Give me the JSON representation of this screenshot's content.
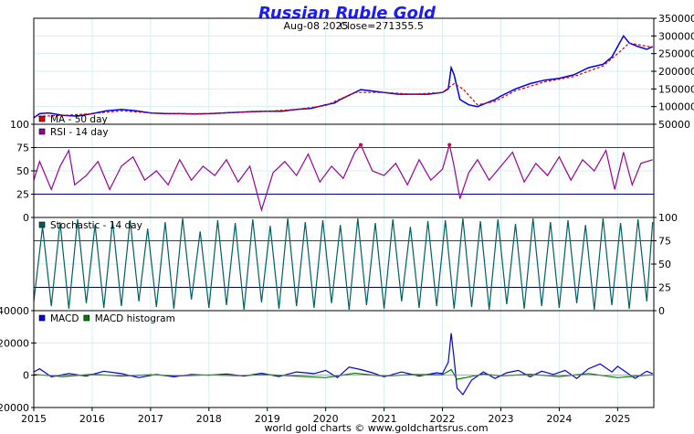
{
  "chart_data": [
    {
      "type": "line",
      "title": "Russian Ruble Gold",
      "subtitle_date": "Aug-08  2025",
      "subtitle_close": "Close=271355.5",
      "ylim": [
        50000,
        350000
      ],
      "yticks": [
        "350000",
        "300000",
        "250000",
        "200000",
        "150000",
        "100000",
        "50000"
      ],
      "ytick_values": [
        350000,
        300000,
        250000,
        200000,
        150000,
        100000,
        50000
      ],
      "grid": true,
      "series": [
        {
          "name": "",
          "color": "#0000ee",
          "x": [
            2015.0,
            2015.1,
            2015.25,
            2015.5,
            2015.75,
            2016.0,
            2016.25,
            2016.5,
            2016.75,
            2017.0,
            2017.25,
            2017.5,
            2017.75,
            2018.0,
            2018.25,
            2018.5,
            2018.75,
            2019.0,
            2019.25,
            2019.5,
            2019.75,
            2020.0,
            2020.15,
            2020.25,
            2020.4,
            2020.6,
            2020.75,
            2021.0,
            2021.25,
            2021.5,
            2021.75,
            2022.0,
            2022.1,
            2022.15,
            2022.2,
            2022.3,
            2022.45,
            2022.6,
            2022.75,
            2022.9,
            2023.0,
            2023.25,
            2023.5,
            2023.75,
            2024.0,
            2024.25,
            2024.5,
            2024.75,
            2024.9,
            2025.0,
            2025.1,
            2025.2,
            2025.35,
            2025.5,
            2025.6
          ],
          "y": [
            68000,
            80000,
            82000,
            75000,
            73000,
            80000,
            88000,
            92000,
            88000,
            82000,
            80000,
            80000,
            79000,
            80000,
            82000,
            84000,
            86000,
            87000,
            87000,
            92000,
            95000,
            105000,
            110000,
            120000,
            132000,
            148000,
            145000,
            140000,
            135000,
            135000,
            135000,
            140000,
            150000,
            210000,
            190000,
            120000,
            105000,
            100000,
            110000,
            120000,
            130000,
            150000,
            165000,
            175000,
            180000,
            190000,
            210000,
            220000,
            240000,
            270000,
            300000,
            280000,
            270000,
            262000,
            270000
          ]
        },
        {
          "name": "MA - 50 day",
          "color": "#e00000",
          "x": [
            2015.0,
            2015.5,
            2016.0,
            2016.5,
            2017.0,
            2017.5,
            2018.0,
            2018.5,
            2019.0,
            2019.5,
            2020.0,
            2020.5,
            2021.0,
            2021.5,
            2022.0,
            2022.2,
            2022.35,
            2022.6,
            2022.9,
            2023.25,
            2023.75,
            2024.25,
            2024.75,
            2025.0,
            2025.2,
            2025.6
          ],
          "y": [
            72000,
            75000,
            80000,
            88000,
            82000,
            80000,
            80000,
            84000,
            87000,
            92000,
            103000,
            140000,
            140000,
            135000,
            140000,
            165000,
            150000,
            105000,
            115000,
            145000,
            170000,
            185000,
            215000,
            250000,
            280000,
            268000
          ]
        }
      ]
    },
    {
      "type": "line",
      "legend": [
        "RSI - 14 day"
      ],
      "ylim": [
        0,
        100
      ],
      "yticks": [
        "100",
        "75",
        "50",
        "25",
        "0"
      ],
      "ytick_values": [
        100,
        75,
        50,
        25,
        0
      ],
      "reference_lines": [
        75,
        25
      ],
      "series": [
        {
          "name": "RSI - 14 day",
          "color": "#990099",
          "overbought_color": "#e00040",
          "x": [
            2015.0,
            2015.1,
            2015.3,
            2015.45,
            2015.6,
            2015.7,
            2015.9,
            2016.1,
            2016.3,
            2016.5,
            2016.7,
            2016.9,
            2017.1,
            2017.3,
            2017.5,
            2017.7,
            2017.9,
            2018.1,
            2018.3,
            2018.5,
            2018.7,
            2018.9,
            2019.1,
            2019.3,
            2019.5,
            2019.7,
            2019.9,
            2020.1,
            2020.3,
            2020.5,
            2020.6,
            2020.8,
            2021.0,
            2021.2,
            2021.4,
            2021.6,
            2021.8,
            2022.0,
            2022.12,
            2022.2,
            2022.3,
            2022.45,
            2022.6,
            2022.8,
            2023.0,
            2023.2,
            2023.4,
            2023.6,
            2023.8,
            2024.0,
            2024.2,
            2024.4,
            2024.6,
            2024.8,
            2024.95,
            2025.1,
            2025.25,
            2025.4,
            2025.6
          ],
          "y": [
            40,
            60,
            30,
            55,
            72,
            35,
            45,
            60,
            30,
            55,
            65,
            40,
            50,
            35,
            62,
            40,
            55,
            45,
            62,
            38,
            55,
            8,
            48,
            60,
            45,
            68,
            38,
            55,
            42,
            70,
            78,
            50,
            45,
            58,
            35,
            62,
            40,
            52,
            78,
            55,
            20,
            48,
            62,
            40,
            55,
            70,
            38,
            58,
            45,
            65,
            40,
            62,
            50,
            72,
            30,
            70,
            35,
            58,
            62
          ]
        }
      ]
    },
    {
      "type": "line",
      "legend": [
        "Stochastic - 14 day"
      ],
      "ylim": [
        0,
        100
      ],
      "yticks": [
        "100",
        "75",
        "50",
        "25",
        "0"
      ],
      "ytick_values": [
        100,
        75,
        50,
        25,
        0
      ],
      "reference_lines": [
        75,
        25
      ],
      "series": [
        {
          "name": "Stochastic - 14 day",
          "color": "#006060",
          "x": [
            2015.0,
            2015.15,
            2015.3,
            2015.45,
            2015.6,
            2015.75,
            2015.9,
            2016.05,
            2016.2,
            2016.35,
            2016.5,
            2016.65,
            2016.8,
            2016.95,
            2017.1,
            2017.25,
            2017.4,
            2017.55,
            2017.7,
            2017.85,
            2018.0,
            2018.15,
            2018.3,
            2018.45,
            2018.6,
            2018.75,
            2018.9,
            2019.05,
            2019.2,
            2019.35,
            2019.5,
            2019.65,
            2019.8,
            2019.95,
            2020.1,
            2020.25,
            2020.4,
            2020.55,
            2020.7,
            2020.85,
            2021.0,
            2021.15,
            2021.3,
            2021.45,
            2021.6,
            2021.75,
            2021.9,
            2022.05,
            2022.2,
            2022.35,
            2022.5,
            2022.65,
            2022.8,
            2022.95,
            2023.1,
            2023.25,
            2023.4,
            2023.55,
            2023.7,
            2023.85,
            2024.0,
            2024.15,
            2024.3,
            2024.45,
            2024.6,
            2024.75,
            2024.9,
            2025.05,
            2025.2,
            2025.35,
            2025.5,
            2025.6
          ],
          "y": [
            10,
            90,
            5,
            95,
            2,
            98,
            8,
            92,
            3,
            96,
            5,
            97,
            10,
            88,
            4,
            95,
            2,
            99,
            12,
            85,
            3,
            97,
            6,
            94,
            1,
            98,
            9,
            91,
            2,
            99,
            5,
            95,
            3,
            97,
            8,
            92,
            1,
            99,
            6,
            94,
            2,
            98,
            10,
            90,
            3,
            96,
            5,
            97,
            2,
            99,
            4,
            96,
            1,
            98,
            7,
            93,
            2,
            99,
            5,
            95,
            3,
            97,
            8,
            92,
            1,
            99,
            6,
            94,
            2,
            98,
            10,
            95
          ]
        }
      ]
    },
    {
      "type": "line",
      "legend": [
        "MACD",
        "MACD histogram"
      ],
      "ylim": [
        -20000,
        40000
      ],
      "yticks": [
        "40000",
        "20000",
        "0",
        "-20000"
      ],
      "ytick_values": [
        40000,
        20000,
        0,
        -20000
      ],
      "categories": [
        "2015",
        "2016",
        "2017",
        "2018",
        "2019",
        "2020",
        "2021",
        "2022",
        "2023",
        "2024",
        "2025"
      ],
      "category_values": [
        2015,
        2016,
        2017,
        2018,
        2019,
        2020,
        2021,
        2022,
        2023,
        2024,
        2025
      ],
      "xlim": [
        2015.0,
        2025.62
      ],
      "series": [
        {
          "name": "MACD",
          "color": "#0000ee",
          "x": [
            2015.0,
            2015.1,
            2015.3,
            2015.6,
            2015.9,
            2016.2,
            2016.5,
            2016.8,
            2017.1,
            2017.4,
            2017.7,
            2018.0,
            2018.3,
            2018.6,
            2018.9,
            2019.2,
            2019.5,
            2019.8,
            2020.0,
            2020.2,
            2020.4,
            2020.6,
            2020.8,
            2021.0,
            2021.3,
            2021.6,
            2021.9,
            2022.0,
            2022.1,
            2022.15,
            2022.2,
            2022.25,
            2022.35,
            2022.5,
            2022.7,
            2022.9,
            2023.1,
            2023.3,
            2023.5,
            2023.7,
            2023.9,
            2024.1,
            2024.3,
            2024.5,
            2024.7,
            2024.9,
            2025.0,
            2025.1,
            2025.3,
            2025.5,
            2025.6
          ],
          "y": [
            2000,
            4000,
            -1000,
            1000,
            -500,
            2500,
            1000,
            -1500,
            500,
            -1000,
            500,
            0,
            800,
            -500,
            1200,
            -800,
            2000,
            1000,
            3000,
            -1500,
            5000,
            3500,
            1500,
            -1000,
            2000,
            -500,
            1500,
            1000,
            8000,
            26000,
            10000,
            -8000,
            -12000,
            -3000,
            2000,
            -2000,
            1500,
            3000,
            -1000,
            2500,
            500,
            3000,
            -2000,
            4000,
            7000,
            2000,
            5500,
            3000,
            -2000,
            2500,
            1000
          ]
        },
        {
          "name": "MACD histogram",
          "color": "#008000",
          "x": [
            2015.0,
            2015.5,
            2016.0,
            2016.5,
            2017.0,
            2017.5,
            2018.0,
            2018.5,
            2019.0,
            2019.5,
            2020.0,
            2020.5,
            2021.0,
            2021.5,
            2022.0,
            2022.15,
            2022.25,
            2022.4,
            2022.7,
            2023.0,
            2023.5,
            2024.0,
            2024.5,
            2025.0,
            2025.6
          ],
          "y": [
            500,
            -800,
            600,
            -500,
            300,
            -400,
            200,
            -300,
            400,
            -500,
            -1500,
            1200,
            -600,
            500,
            300,
            3500,
            -2500,
            -1500,
            800,
            -400,
            600,
            -800,
            1000,
            -1500,
            300
          ]
        }
      ]
    }
  ],
  "footer": "world gold charts © www.goldchartsrus.com"
}
